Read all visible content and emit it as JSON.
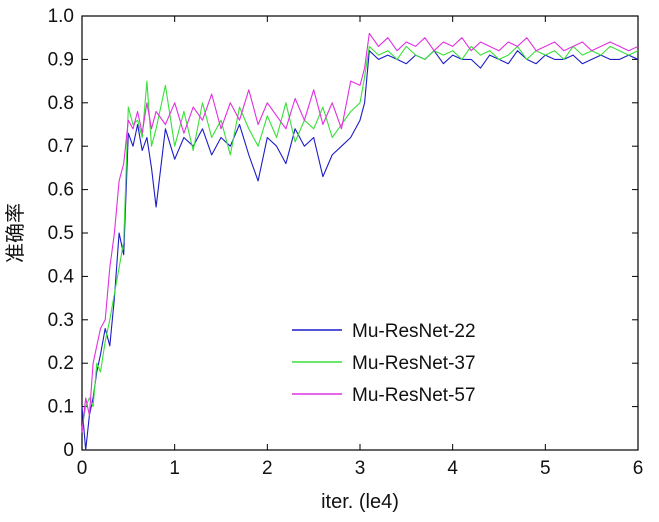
{
  "chart_data": {
    "type": "line",
    "xlabel": "iter. (le4)",
    "ylabel": "准确率",
    "xlim": [
      0,
      6
    ],
    "ylim": [
      0,
      1.0
    ],
    "xticks": [
      "0",
      "1",
      "2",
      "3",
      "4",
      "5",
      "6"
    ],
    "yticks": [
      "0",
      "0.1",
      "0.2",
      "0.3",
      "0.4",
      "0.5",
      "0.6",
      "0.7",
      "0.8",
      "0.9",
      "1.0"
    ],
    "grid": false,
    "legend_position": "center-right",
    "colors": {
      "axis": "#000000"
    },
    "series": [
      {
        "name": "Mu-ResNet-22",
        "color": "#1c1cc8",
        "x": [
          0,
          0.04,
          0.08,
          0.12,
          0.16,
          0.2,
          0.25,
          0.3,
          0.35,
          0.4,
          0.45,
          0.5,
          0.55,
          0.6,
          0.65,
          0.7,
          0.75,
          0.8,
          0.9,
          1.0,
          1.1,
          1.2,
          1.3,
          1.4,
          1.5,
          1.6,
          1.7,
          1.8,
          1.9,
          2.0,
          2.1,
          2.2,
          2.3,
          2.4,
          2.5,
          2.6,
          2.7,
          2.8,
          2.9,
          3.0,
          3.05,
          3.1,
          3.2,
          3.3,
          3.4,
          3.5,
          3.6,
          3.7,
          3.8,
          3.9,
          4.0,
          4.1,
          4.2,
          4.3,
          4.4,
          4.5,
          4.6,
          4.7,
          4.8,
          4.9,
          5.0,
          5.1,
          5.2,
          5.3,
          5.4,
          5.5,
          5.6,
          5.7,
          5.8,
          5.9,
          6.0
        ],
        "y": [
          0.1,
          0.0,
          0.08,
          0.12,
          0.18,
          0.22,
          0.28,
          0.24,
          0.35,
          0.5,
          0.45,
          0.73,
          0.7,
          0.75,
          0.69,
          0.72,
          0.65,
          0.56,
          0.74,
          0.67,
          0.72,
          0.7,
          0.74,
          0.68,
          0.72,
          0.7,
          0.75,
          0.68,
          0.62,
          0.72,
          0.7,
          0.66,
          0.74,
          0.7,
          0.72,
          0.63,
          0.68,
          0.7,
          0.72,
          0.76,
          0.8,
          0.92,
          0.9,
          0.91,
          0.9,
          0.89,
          0.91,
          0.9,
          0.92,
          0.89,
          0.91,
          0.9,
          0.9,
          0.88,
          0.91,
          0.9,
          0.89,
          0.92,
          0.9,
          0.89,
          0.91,
          0.9,
          0.9,
          0.91,
          0.89,
          0.9,
          0.91,
          0.9,
          0.9,
          0.91,
          0.9
        ]
      },
      {
        "name": "Mu-ResNet-37",
        "color": "#38e038",
        "x": [
          0,
          0.04,
          0.08,
          0.12,
          0.16,
          0.2,
          0.25,
          0.3,
          0.35,
          0.4,
          0.45,
          0.5,
          0.55,
          0.6,
          0.65,
          0.7,
          0.75,
          0.8,
          0.9,
          1.0,
          1.1,
          1.2,
          1.3,
          1.4,
          1.5,
          1.6,
          1.7,
          1.8,
          1.9,
          2.0,
          2.1,
          2.2,
          2.3,
          2.4,
          2.5,
          2.6,
          2.7,
          2.8,
          2.9,
          3.0,
          3.05,
          3.1,
          3.2,
          3.3,
          3.4,
          3.5,
          3.6,
          3.7,
          3.8,
          3.9,
          4.0,
          4.1,
          4.2,
          4.3,
          4.4,
          4.5,
          4.6,
          4.7,
          4.8,
          4.9,
          5.0,
          5.1,
          5.2,
          5.3,
          5.4,
          5.5,
          5.6,
          5.7,
          5.8,
          5.9,
          6.0
        ],
        "y": [
          0.05,
          0.1,
          0.12,
          0.1,
          0.2,
          0.18,
          0.25,
          0.3,
          0.36,
          0.42,
          0.48,
          0.79,
          0.75,
          0.76,
          0.72,
          0.85,
          0.7,
          0.74,
          0.84,
          0.7,
          0.78,
          0.69,
          0.8,
          0.72,
          0.76,
          0.68,
          0.79,
          0.74,
          0.7,
          0.77,
          0.72,
          0.8,
          0.71,
          0.76,
          0.74,
          0.79,
          0.72,
          0.75,
          0.78,
          0.8,
          0.86,
          0.93,
          0.91,
          0.92,
          0.9,
          0.93,
          0.91,
          0.9,
          0.92,
          0.91,
          0.92,
          0.9,
          0.93,
          0.91,
          0.92,
          0.9,
          0.91,
          0.93,
          0.9,
          0.92,
          0.91,
          0.92,
          0.9,
          0.93,
          0.91,
          0.92,
          0.91,
          0.93,
          0.92,
          0.91,
          0.92
        ]
      },
      {
        "name": "Mu-ResNet-57",
        "color": "#e030e0",
        "x": [
          0,
          0.04,
          0.08,
          0.12,
          0.16,
          0.2,
          0.25,
          0.3,
          0.35,
          0.4,
          0.45,
          0.5,
          0.55,
          0.6,
          0.65,
          0.7,
          0.75,
          0.8,
          0.9,
          1.0,
          1.1,
          1.2,
          1.3,
          1.4,
          1.5,
          1.6,
          1.7,
          1.8,
          1.9,
          2.0,
          2.1,
          2.2,
          2.3,
          2.4,
          2.5,
          2.6,
          2.7,
          2.8,
          2.9,
          3.0,
          3.05,
          3.1,
          3.2,
          3.3,
          3.4,
          3.5,
          3.6,
          3.7,
          3.8,
          3.9,
          4.0,
          4.1,
          4.2,
          4.3,
          4.4,
          4.5,
          4.6,
          4.7,
          4.8,
          4.9,
          5.0,
          5.1,
          5.2,
          5.3,
          5.4,
          5.5,
          5.6,
          5.7,
          5.8,
          5.9,
          6.0
        ],
        "y": [
          0.04,
          0.12,
          0.08,
          0.2,
          0.24,
          0.28,
          0.3,
          0.42,
          0.5,
          0.62,
          0.66,
          0.76,
          0.74,
          0.78,
          0.73,
          0.8,
          0.74,
          0.78,
          0.75,
          0.8,
          0.73,
          0.79,
          0.76,
          0.82,
          0.74,
          0.8,
          0.76,
          0.83,
          0.75,
          0.8,
          0.77,
          0.74,
          0.81,
          0.76,
          0.83,
          0.75,
          0.8,
          0.74,
          0.85,
          0.84,
          0.88,
          0.96,
          0.93,
          0.95,
          0.92,
          0.94,
          0.93,
          0.95,
          0.92,
          0.94,
          0.93,
          0.95,
          0.92,
          0.94,
          0.93,
          0.92,
          0.94,
          0.93,
          0.95,
          0.92,
          0.93,
          0.94,
          0.92,
          0.93,
          0.94,
          0.92,
          0.93,
          0.94,
          0.93,
          0.92,
          0.93
        ]
      }
    ]
  }
}
